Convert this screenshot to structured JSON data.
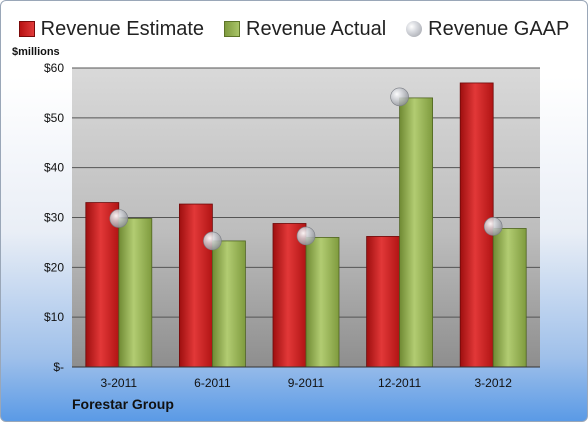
{
  "legend": {
    "estimate": "Revenue Estimate",
    "actual": "Revenue Actual",
    "gaap": "Revenue GAAP"
  },
  "units_label": "$millions",
  "company": "Forestar Group",
  "colors": {
    "estimate": "#c81e1e",
    "actual": "#8fae4f",
    "gaap": "#c8cad0"
  },
  "chart_data": {
    "type": "bar",
    "categories": [
      "3-2011",
      "6-2011",
      "9-2011",
      "12-2011",
      "3-2012"
    ],
    "series": [
      {
        "name": "Revenue Estimate",
        "values": [
          33,
          32.7,
          28.8,
          26.2,
          57
        ]
      },
      {
        "name": "Revenue Actual",
        "values": [
          29.8,
          25.3,
          26,
          54,
          27.8
        ]
      },
      {
        "name": "Revenue GAAP",
        "values": [
          29.8,
          25.3,
          26.3,
          54.2,
          28.2
        ]
      }
    ],
    "title": "",
    "ylabel": "$millions",
    "ylim": [
      0,
      60
    ],
    "yticks": [
      0,
      10,
      20,
      30,
      40,
      50,
      60
    ],
    "ytick_labels": [
      "$-",
      "$10",
      "$20",
      "$30",
      "$40",
      "$50",
      "$60"
    ],
    "grid": true,
    "legend_position": "top"
  }
}
